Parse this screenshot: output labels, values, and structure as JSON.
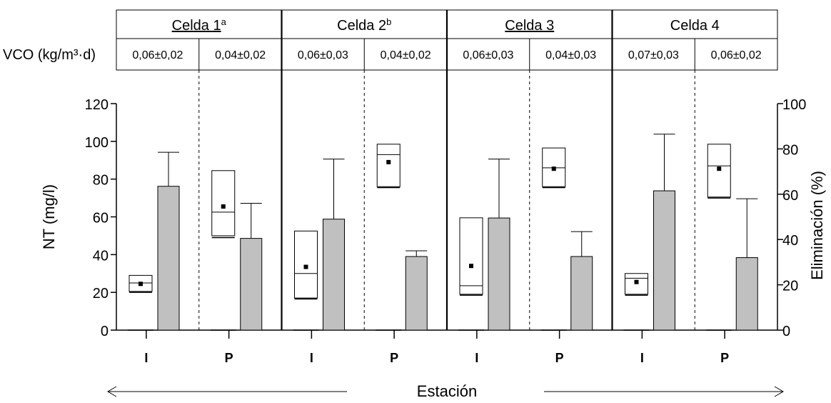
{
  "chart_data": {
    "type": "box-bar",
    "cells": [
      {
        "name": "Celda 1",
        "superscript": "a",
        "underlined": true
      },
      {
        "name": "Celda 2",
        "superscript": "b",
        "underlined": false
      },
      {
        "name": "Celda 3",
        "superscript": "",
        "underlined": true
      },
      {
        "name": "Celda 4",
        "superscript": "",
        "underlined": false
      }
    ],
    "vco_label": "VCO (kg/m³·d)",
    "vco_values": [
      "0,06±0,02",
      "0,04±0,02",
      "0,06±0,03",
      "0,04±0,02",
      "0,06±0,03",
      "0,04±0,03",
      "0,07±0,03",
      "0,06±0,02"
    ],
    "groups": [
      {
        "cell": 1,
        "station": "I",
        "box": {
          "low": 20,
          "q1": 20.5,
          "median": 25,
          "q3": 29,
          "mean": 24.5
        },
        "bar": {
          "value": 63.5,
          "err": 78.5
        }
      },
      {
        "cell": 1,
        "station": "P",
        "box": {
          "low": 49,
          "q1": 50,
          "median": 62.5,
          "q3": 84.5,
          "mean": 65.5
        },
        "bar": {
          "value": 40.5,
          "err": 56
        }
      },
      {
        "cell": 2,
        "station": "I",
        "box": {
          "low": 16.5,
          "q1": 17,
          "median": 30,
          "q3": 52.5,
          "mean": 33.5
        },
        "bar": {
          "value": 49,
          "err": 75.5
        }
      },
      {
        "cell": 2,
        "station": "P",
        "box": {
          "low": 75.5,
          "q1": 76,
          "median": 93,
          "q3": 98.5,
          "mean": 89
        },
        "bar": {
          "value": 32.5,
          "err": 35
        }
      },
      {
        "cell": 3,
        "station": "I",
        "box": {
          "low": 18.5,
          "q1": 19,
          "median": 23.5,
          "q3": 59.5,
          "mean": 34
        },
        "bar": {
          "value": 49.5,
          "err": 75.5
        }
      },
      {
        "cell": 3,
        "station": "P",
        "box": {
          "low": 75.5,
          "q1": 76,
          "median": 86,
          "q3": 96.5,
          "mean": 85.5
        },
        "bar": {
          "value": 32.5,
          "err": 43.5
        }
      },
      {
        "cell": 4,
        "station": "I",
        "box": {
          "low": 18.5,
          "q1": 19,
          "median": 27.5,
          "q3": 30,
          "mean": 25.5
        },
        "bar": {
          "value": 61.5,
          "err": 86.5
        }
      },
      {
        "cell": 4,
        "station": "P",
        "box": {
          "low": 70,
          "q1": 70.5,
          "median": 87,
          "q3": 98.5,
          "mean": 85.5
        },
        "bar": {
          "value": 32,
          "err": 58
        }
      }
    ],
    "categories": [
      "I",
      "P",
      "I",
      "P",
      "I",
      "P",
      "I",
      "P"
    ],
    "ylabel_left": "NT (mg/l)",
    "ylim_left": [
      0,
      120
    ],
    "yticks_left": [
      "0",
      "20",
      "40",
      "60",
      "80",
      "100",
      "120"
    ],
    "ylabel_right": "Eliminación (%)",
    "ylim_right": [
      0,
      100
    ],
    "yticks_right": [
      "0",
      "20",
      "40",
      "60",
      "80",
      "100"
    ],
    "xlabel": "Estación",
    "colors": {
      "bar": "#c0c0c0",
      "box": "#ffffff",
      "mean": "#000000"
    }
  }
}
